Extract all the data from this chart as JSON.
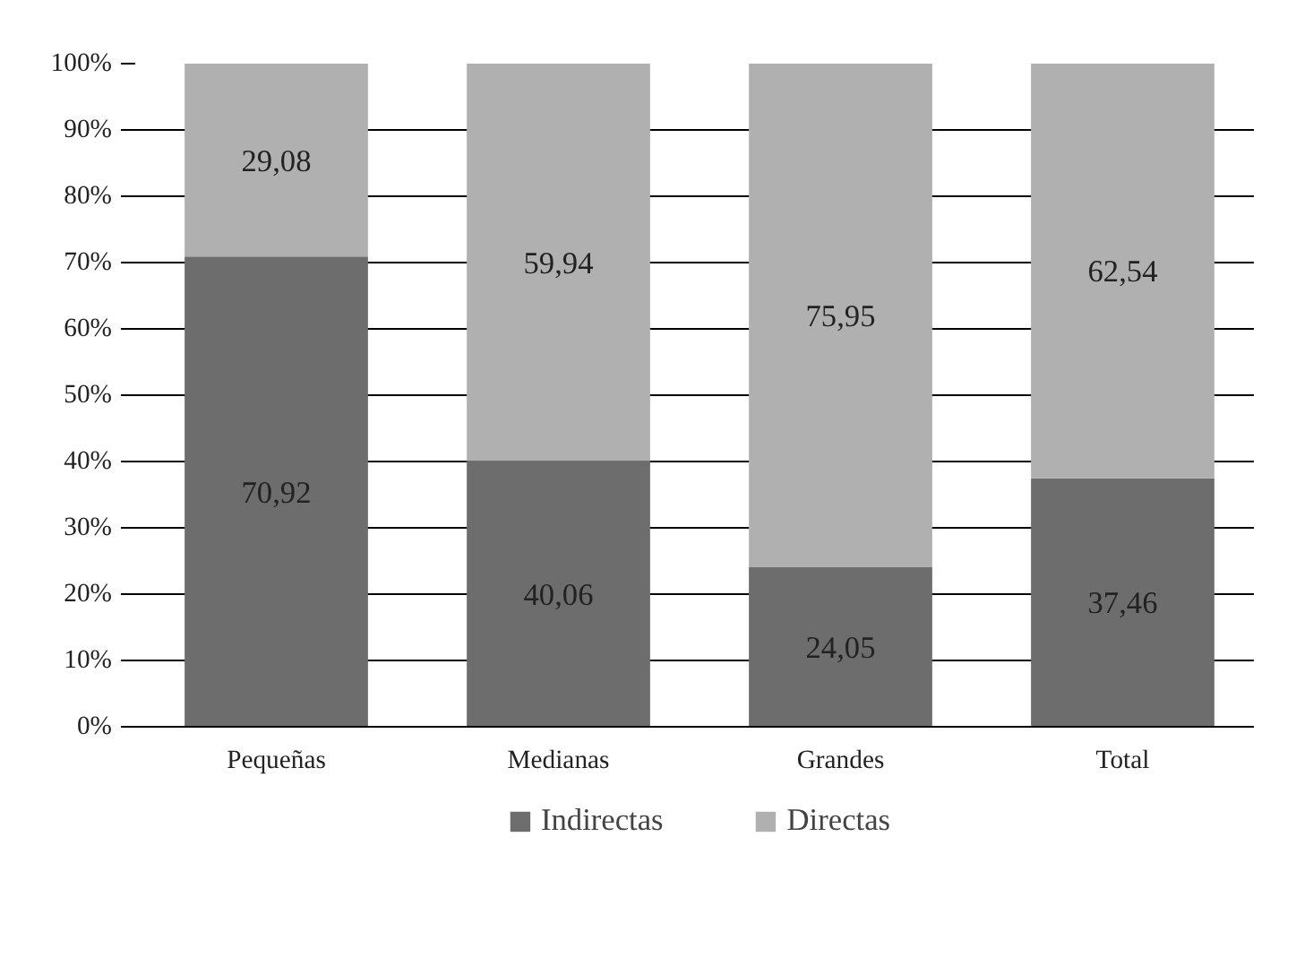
{
  "chart_data": {
    "type": "bar",
    "stacked": true,
    "categories": [
      "Pequeñas",
      "Medianas",
      "Grandes",
      "Total"
    ],
    "series": [
      {
        "name": "Indirectas",
        "color": "#6d6d6d",
        "values": [
          70.92,
          40.06,
          24.05,
          37.46
        ],
        "value_labels": [
          "70,92",
          "40,06",
          "24,05",
          "37,46"
        ]
      },
      {
        "name": "Directas",
        "color": "#b0b0b0",
        "values": [
          29.08,
          59.94,
          75.95,
          62.54
        ],
        "value_labels": [
          "29,08",
          "59,94",
          "75,95",
          "62,54"
        ]
      }
    ],
    "ylim": [
      0,
      100
    ],
    "yticks": [
      {
        "value": 0,
        "label": "0%"
      },
      {
        "value": 10,
        "label": "10%"
      },
      {
        "value": 20,
        "label": "20%"
      },
      {
        "value": 30,
        "label": "30%"
      },
      {
        "value": 40,
        "label": "40%"
      },
      {
        "value": 50,
        "label": "50%"
      },
      {
        "value": 60,
        "label": "60%"
      },
      {
        "value": 70,
        "label": "70%"
      },
      {
        "value": 80,
        "label": "80%"
      },
      {
        "value": 90,
        "label": "90%"
      },
      {
        "value": 100,
        "label": "100%"
      }
    ],
    "grid": "y",
    "legend": "bottom"
  }
}
